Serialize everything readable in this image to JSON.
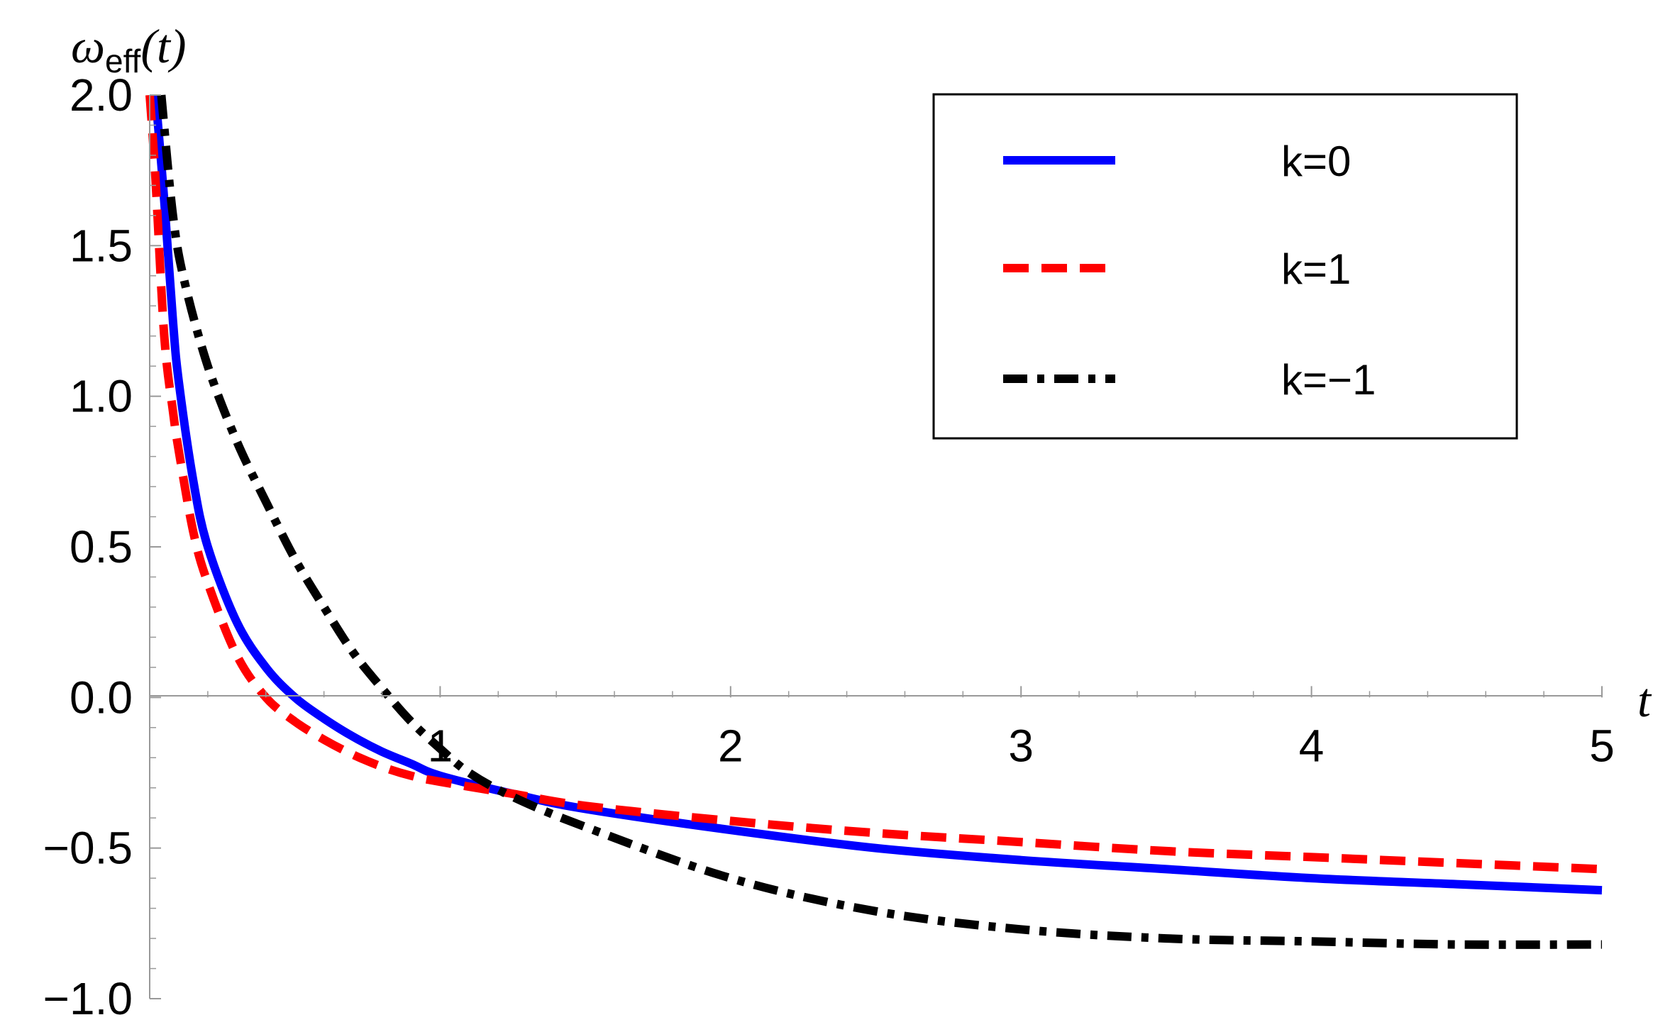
{
  "chart_data": {
    "type": "line",
    "x_axis": {
      "label": "t",
      "range": [
        0,
        5
      ],
      "ticks": [
        1,
        2,
        3,
        4,
        5
      ],
      "tick_labels": [
        "1",
        "2",
        "3",
        "4",
        "5"
      ]
    },
    "y_axis": {
      "label_main": "ω",
      "label_sub": "eff",
      "label_arg": "(t)",
      "range": [
        -1.0,
        2.0
      ],
      "ticks": [
        -1.0,
        -0.5,
        0.0,
        0.5,
        1.0,
        1.5,
        2.0
      ],
      "tick_labels": [
        "−1.0",
        "−0.5",
        "0.0",
        "0.5",
        "1.0",
        "1.5",
        "2.0"
      ]
    },
    "grid": false,
    "legend_position": "top-right",
    "series": [
      {
        "name": "k=0",
        "color": "#0000ff",
        "style": "solid",
        "x": [
          0.02,
          0.05,
          0.08,
          0.1,
          0.15,
          0.2,
          0.3,
          0.4,
          0.5,
          0.6,
          0.7,
          0.8,
          0.9,
          1.0,
          1.25,
          1.5,
          2.0,
          2.5,
          3.0,
          3.5,
          4.0,
          4.5,
          5.0
        ],
        "y": [
          2.0,
          1.65,
          1.25,
          1.05,
          0.72,
          0.5,
          0.25,
          0.1,
          0.0,
          -0.07,
          -0.13,
          -0.18,
          -0.22,
          -0.26,
          -0.32,
          -0.37,
          -0.44,
          -0.5,
          -0.54,
          -0.57,
          -0.6,
          -0.62,
          -0.64
        ]
      },
      {
        "name": "k=1",
        "color": "#ff0000",
        "style": "dashed",
        "x": [
          0.0,
          0.02,
          0.05,
          0.08,
          0.1,
          0.15,
          0.2,
          0.3,
          0.4,
          0.5,
          0.6,
          0.7,
          0.8,
          0.9,
          1.0,
          1.25,
          1.5,
          2.0,
          2.5,
          3.0,
          3.5,
          4.0,
          4.5,
          5.0
        ],
        "y": [
          2.0,
          1.72,
          1.2,
          0.95,
          0.82,
          0.55,
          0.38,
          0.14,
          0.0,
          -0.08,
          -0.14,
          -0.19,
          -0.23,
          -0.26,
          -0.28,
          -0.32,
          -0.36,
          -0.41,
          -0.45,
          -0.48,
          -0.51,
          -0.53,
          -0.55,
          -0.57
        ]
      },
      {
        "name": "k=−1",
        "color": "#000000",
        "style": "dashdot",
        "x": [
          0.04,
          0.08,
          0.12,
          0.2,
          0.3,
          0.4,
          0.5,
          0.6,
          0.7,
          0.8,
          0.9,
          1.0,
          1.1,
          1.25,
          1.5,
          2.0,
          2.5,
          3.0,
          3.5,
          4.0,
          4.5,
          5.0
        ],
        "y": [
          2.0,
          1.6,
          1.38,
          1.1,
          0.85,
          0.65,
          0.46,
          0.3,
          0.15,
          0.03,
          -0.08,
          -0.17,
          -0.25,
          -0.33,
          -0.43,
          -0.6,
          -0.71,
          -0.77,
          -0.8,
          -0.81,
          -0.82,
          -0.82
        ]
      }
    ]
  }
}
